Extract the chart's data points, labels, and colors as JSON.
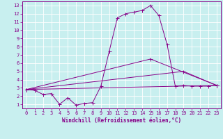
{
  "xlabel": "Windchill (Refroidissement éolien,°C)",
  "bg_color": "#c8efef",
  "line_color": "#880088",
  "grid_color": "#aadddd",
  "xlim": [
    -0.5,
    23.5
  ],
  "ylim": [
    0.5,
    13.5
  ],
  "xticks": [
    0,
    1,
    2,
    3,
    4,
    5,
    6,
    7,
    8,
    9,
    10,
    11,
    12,
    13,
    14,
    15,
    16,
    17,
    18,
    19,
    20,
    21,
    22,
    23
  ],
  "yticks": [
    1,
    2,
    3,
    4,
    5,
    6,
    7,
    8,
    9,
    10,
    11,
    12,
    13
  ],
  "line1_x": [
    0,
    1,
    2,
    3,
    4,
    5,
    6,
    7,
    8,
    9,
    10,
    11,
    12,
    13,
    14,
    15,
    16,
    17,
    18,
    19,
    20,
    21,
    22,
    23
  ],
  "line1_y": [
    2.8,
    2.7,
    2.2,
    2.3,
    1.0,
    1.8,
    0.9,
    1.1,
    1.2,
    3.2,
    7.4,
    11.5,
    12.0,
    12.2,
    12.4,
    13.0,
    11.8,
    8.3,
    3.2,
    3.3,
    3.2,
    3.2,
    3.2,
    3.3
  ],
  "line2_x": [
    0,
    23
  ],
  "line2_y": [
    2.8,
    3.3
  ],
  "line3_x": [
    0,
    15,
    23
  ],
  "line3_y": [
    2.8,
    6.5,
    3.3
  ],
  "line4_x": [
    0,
    19,
    23
  ],
  "line4_y": [
    2.8,
    5.0,
    3.3
  ],
  "xlabel_fontsize": 5.5,
  "tick_fontsize": 5.0,
  "lw": 0.7,
  "ms": 1.8
}
